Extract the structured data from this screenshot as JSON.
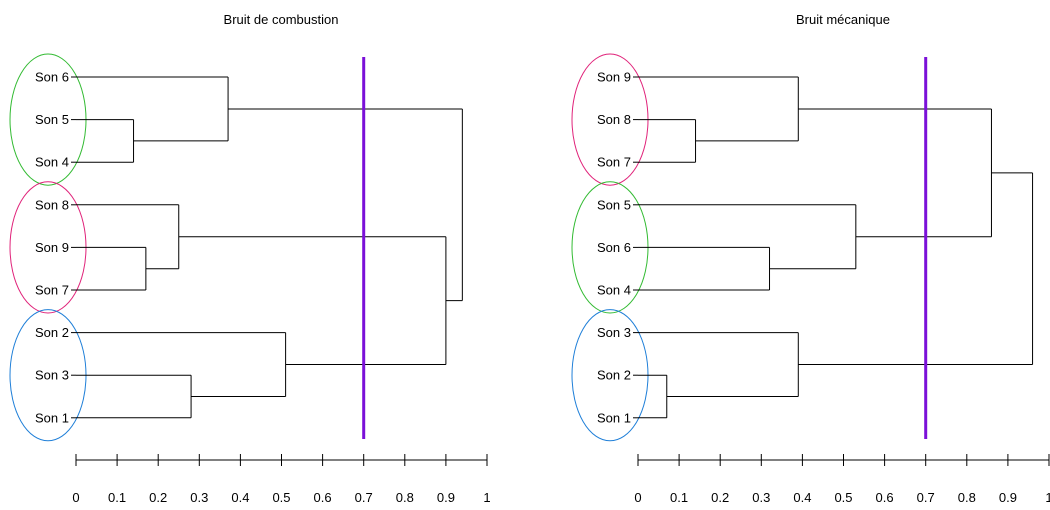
{
  "chart_data": [
    {
      "type": "dendrogram",
      "title": "Bruit de combustion",
      "xlim": [
        0,
        1
      ],
      "ticks": [
        "0",
        "0.1",
        "0.2",
        "0.3",
        "0.4",
        "0.5",
        "0.6",
        "0.7",
        "0.8",
        "0.9",
        "1"
      ],
      "leaves": [
        "Son 6",
        "Son 5",
        "Son 4",
        "Son 8",
        "Son 9",
        "Son 7",
        "Son 2",
        "Son 3",
        "Son 1"
      ],
      "merges": [
        {
          "a": 1,
          "b": 2,
          "height": 0.14
        },
        {
          "a": 4,
          "b": 5,
          "height": 0.17
        },
        {
          "a": 7,
          "b": 8,
          "height": 0.28
        },
        {
          "a": 0,
          "b": "m0",
          "height": 0.37
        },
        {
          "a": 3,
          "b": "m1",
          "height": 0.25
        },
        {
          "a": 6,
          "b": "m2",
          "height": 0.51
        },
        {
          "a": "m4",
          "b": "m5",
          "height": 0.9
        },
        {
          "a": "m3",
          "b": "m6",
          "height": 0.94
        }
      ],
      "cut_height": 0.7,
      "cut_color": "#7b10d8",
      "groups": [
        {
          "leaves": [
            "Son 6",
            "Son 5",
            "Son 4"
          ],
          "color": "#33bb33"
        },
        {
          "leaves": [
            "Son 8",
            "Son 9",
            "Son 7"
          ],
          "color": "#e0237a"
        },
        {
          "leaves": [
            "Son 2",
            "Son 3",
            "Son 1"
          ],
          "color": "#1f7fd8"
        }
      ]
    },
    {
      "type": "dendrogram",
      "title": "Bruit mécanique",
      "xlim": [
        0,
        1
      ],
      "ticks": [
        "0",
        "0.1",
        "0.2",
        "0.3",
        "0.4",
        "0.5",
        "0.6",
        "0.7",
        "0.8",
        "0.9",
        "1"
      ],
      "leaves": [
        "Son 9",
        "Son 8",
        "Son 7",
        "Son 5",
        "Son 6",
        "Son 4",
        "Son 3",
        "Son 2",
        "Son 1"
      ],
      "merges": [
        {
          "a": 1,
          "b": 2,
          "height": 0.14
        },
        {
          "a": 4,
          "b": 5,
          "height": 0.32
        },
        {
          "a": 7,
          "b": 8,
          "height": 0.07
        },
        {
          "a": 0,
          "b": "m0",
          "height": 0.39
        },
        {
          "a": 3,
          "b": "m1",
          "height": 0.53
        },
        {
          "a": 6,
          "b": "m2",
          "height": 0.39
        },
        {
          "a": "m3",
          "b": "m4",
          "height": 0.86
        },
        {
          "a": "m5",
          "b": "m6",
          "height": 0.96
        }
      ],
      "cut_height": 0.7,
      "cut_color": "#7b10d8",
      "groups": [
        {
          "leaves": [
            "Son 9",
            "Son 8",
            "Son 7"
          ],
          "color": "#e0237a"
        },
        {
          "leaves": [
            "Son 5",
            "Son 6",
            "Son 4"
          ],
          "color": "#33bb33"
        },
        {
          "leaves": [
            "Son 3",
            "Son 2",
            "Son 1"
          ],
          "color": "#1f7fd8"
        }
      ]
    }
  ]
}
